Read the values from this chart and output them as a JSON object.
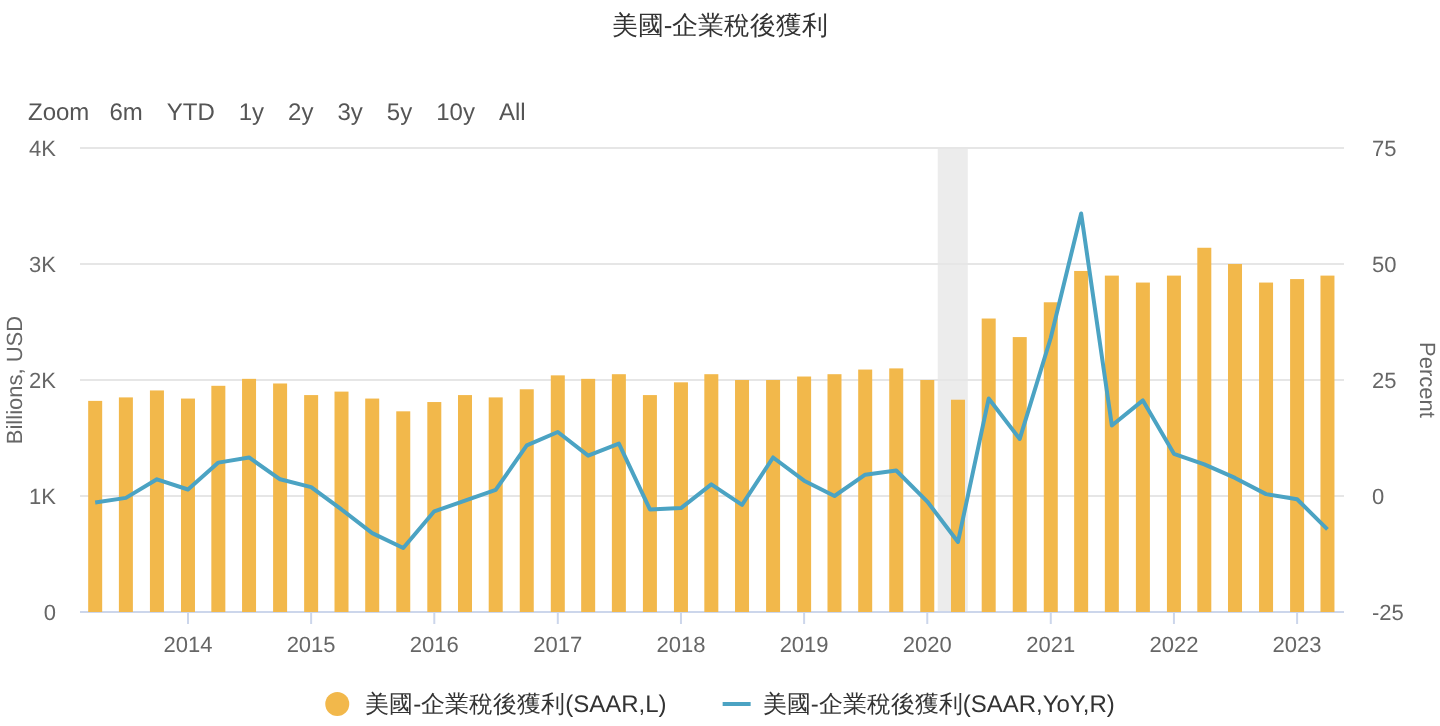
{
  "chart_data": {
    "type": "bar",
    "title": "美國-企業稅後獲利",
    "ylabel": "Billions, USD",
    "y2label": "Percent",
    "annotations": [
      "Zoom",
      "6m",
      "YTD",
      "1y",
      "2y",
      "3y",
      "5y",
      "10y",
      "All"
    ],
    "x": [
      "2013-04-01",
      "2013-07-01",
      "2013-10-01",
      "2014-01-01",
      "2014-04-01",
      "2014-07-01",
      "2014-10-01",
      "2015-01-01",
      "2015-04-01",
      "2015-07-01",
      "2015-10-01",
      "2016-01-01",
      "2016-04-01",
      "2016-07-01",
      "2016-10-01",
      "2017-01-01",
      "2017-04-01",
      "2017-07-01",
      "2017-10-01",
      "2018-01-01",
      "2018-04-01",
      "2018-07-01",
      "2018-10-01",
      "2019-01-01",
      "2019-04-01",
      "2019-07-01",
      "2019-10-01",
      "2020-01-01",
      "2020-04-01",
      "2020-07-01",
      "2020-10-01",
      "2021-01-01",
      "2021-04-01",
      "2021-07-01",
      "2021-10-01",
      "2022-01-01",
      "2022-04-01",
      "2022-07-01",
      "2022-10-01",
      "2023-01-01",
      "2023-04-01"
    ],
    "series": [
      {
        "name": "美國-企業稅後獲利(SAAR,L)",
        "color": "#f2b84b",
        "values": [
          1820,
          1850,
          1910,
          1840,
          1950,
          2010,
          1970,
          1870,
          1900,
          1840,
          1730,
          1810,
          1870,
          1850,
          1920,
          2040,
          2010,
          2050,
          1870,
          1980,
          2050,
          2000,
          2000,
          2030,
          2050,
          2090,
          2100,
          2000,
          1830,
          2530,
          2370,
          2670,
          2940,
          2900,
          2840,
          2900,
          3140,
          3000,
          2840,
          2870,
          2900
        ]
      },
      {
        "name": "美國-企業稅後獲利(SAAR,YoY,R)",
        "type": "line",
        "axis": "y2",
        "color": "#4ba3c3",
        "values": [
          -1.4,
          -0.4,
          3.6,
          1.4,
          7.2,
          8.3,
          3.6,
          1.9,
          -2.9,
          -8.0,
          -11.2,
          -3.3,
          -1.0,
          1.3,
          10.9,
          13.8,
          8.7,
          11.3,
          -2.9,
          -2.6,
          2.5,
          -1.9,
          8.3,
          3.3,
          0,
          4.6,
          5.5,
          -1.2,
          -9.9,
          21.0,
          12.3,
          34.1,
          60.9,
          15.2,
          20.6,
          9.1,
          6.8,
          3.9,
          0.4,
          -0.7,
          -7.2
        ]
      }
    ],
    "xlim": [
      "2013-02-15",
      "2023-05-20"
    ],
    "xticks": [
      {
        "value": "2014-01-01",
        "label": "2014"
      },
      {
        "value": "2015-01-01",
        "label": "2015"
      },
      {
        "value": "2016-01-01",
        "label": "2016"
      },
      {
        "value": "2017-01-01",
        "label": "2017"
      },
      {
        "value": "2018-01-01",
        "label": "2018"
      },
      {
        "value": "2019-01-01",
        "label": "2019"
      },
      {
        "value": "2020-01-01",
        "label": "2020"
      },
      {
        "value": "2021-01-01",
        "label": "2021"
      },
      {
        "value": "2022-01-01",
        "label": "2022"
      },
      {
        "value": "2023-01-01",
        "label": "2023"
      }
    ],
    "ylim": [
      0,
      4000
    ],
    "yticks": [
      0,
      {
        "value": 1000,
        "label": "1K"
      },
      {
        "value": 2000,
        "label": "2K"
      },
      {
        "value": 3000,
        "label": "3K"
      },
      {
        "value": 4000,
        "label": "4K"
      }
    ],
    "y2lim": [
      -25,
      75
    ],
    "y2ticks": [
      -25,
      0,
      25,
      50,
      75
    ],
    "bands": [
      {
        "axis": "x",
        "from": "2020-02-01",
        "to": "2020-04-30",
        "color": "#ececec"
      }
    ],
    "grid": "y",
    "legend": "bottom",
    "marker": "none"
  }
}
